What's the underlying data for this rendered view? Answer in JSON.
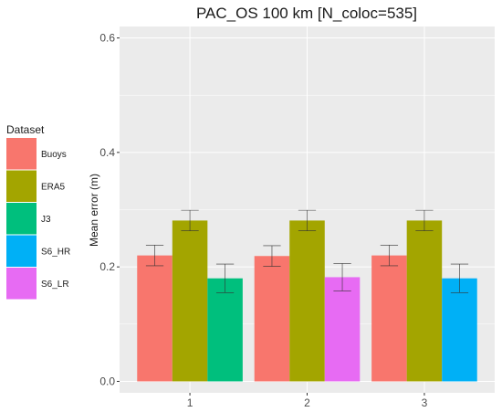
{
  "chart_data": {
    "type": "bar",
    "title": "PAC_OS 100 km [N_coloc=535]",
    "xlabel": "",
    "ylabel": "Mean error (m)",
    "ylim": [
      -0.02,
      0.62
    ],
    "yticks": [
      "0.0",
      "0.2",
      "0.4",
      "0.6"
    ],
    "categories": [
      "1",
      "2",
      "3"
    ],
    "grid": true,
    "legend": {
      "title": "Dataset",
      "position": "left",
      "entries": [
        {
          "name": "Buoys",
          "color": "#F8766D"
        },
        {
          "name": "ERA5",
          "color": "#A3A500"
        },
        {
          "name": "J3",
          "color": "#00BF7D"
        },
        {
          "name": "S6_HR",
          "color": "#00B0F6"
        },
        {
          "name": "S6_LR",
          "color": "#E76BF3"
        }
      ]
    },
    "groups": [
      {
        "category": "1",
        "bars": [
          {
            "series": "Buoys",
            "value": 0.22,
            "err_low": 0.202,
            "err_high": 0.238
          },
          {
            "series": "ERA5",
            "value": 0.281,
            "err_low": 0.263,
            "err_high": 0.299
          },
          {
            "series": "J3",
            "value": 0.18,
            "err_low": 0.155,
            "err_high": 0.205
          }
        ]
      },
      {
        "category": "2",
        "bars": [
          {
            "series": "Buoys",
            "value": 0.219,
            "err_low": 0.201,
            "err_high": 0.237
          },
          {
            "series": "ERA5",
            "value": 0.281,
            "err_low": 0.263,
            "err_high": 0.299
          },
          {
            "series": "S6_LR",
            "value": 0.182,
            "err_low": 0.158,
            "err_high": 0.206
          }
        ]
      },
      {
        "category": "3",
        "bars": [
          {
            "series": "Buoys",
            "value": 0.22,
            "err_low": 0.202,
            "err_high": 0.238
          },
          {
            "series": "ERA5",
            "value": 0.281,
            "err_low": 0.263,
            "err_high": 0.299
          },
          {
            "series": "S6_HR",
            "value": 0.18,
            "err_low": 0.155,
            "err_high": 0.205
          }
        ]
      }
    ],
    "colors": {
      "panel_background": "#EBEBEB",
      "grid_major": "#FFFFFF",
      "errorbar": "#333333"
    }
  }
}
